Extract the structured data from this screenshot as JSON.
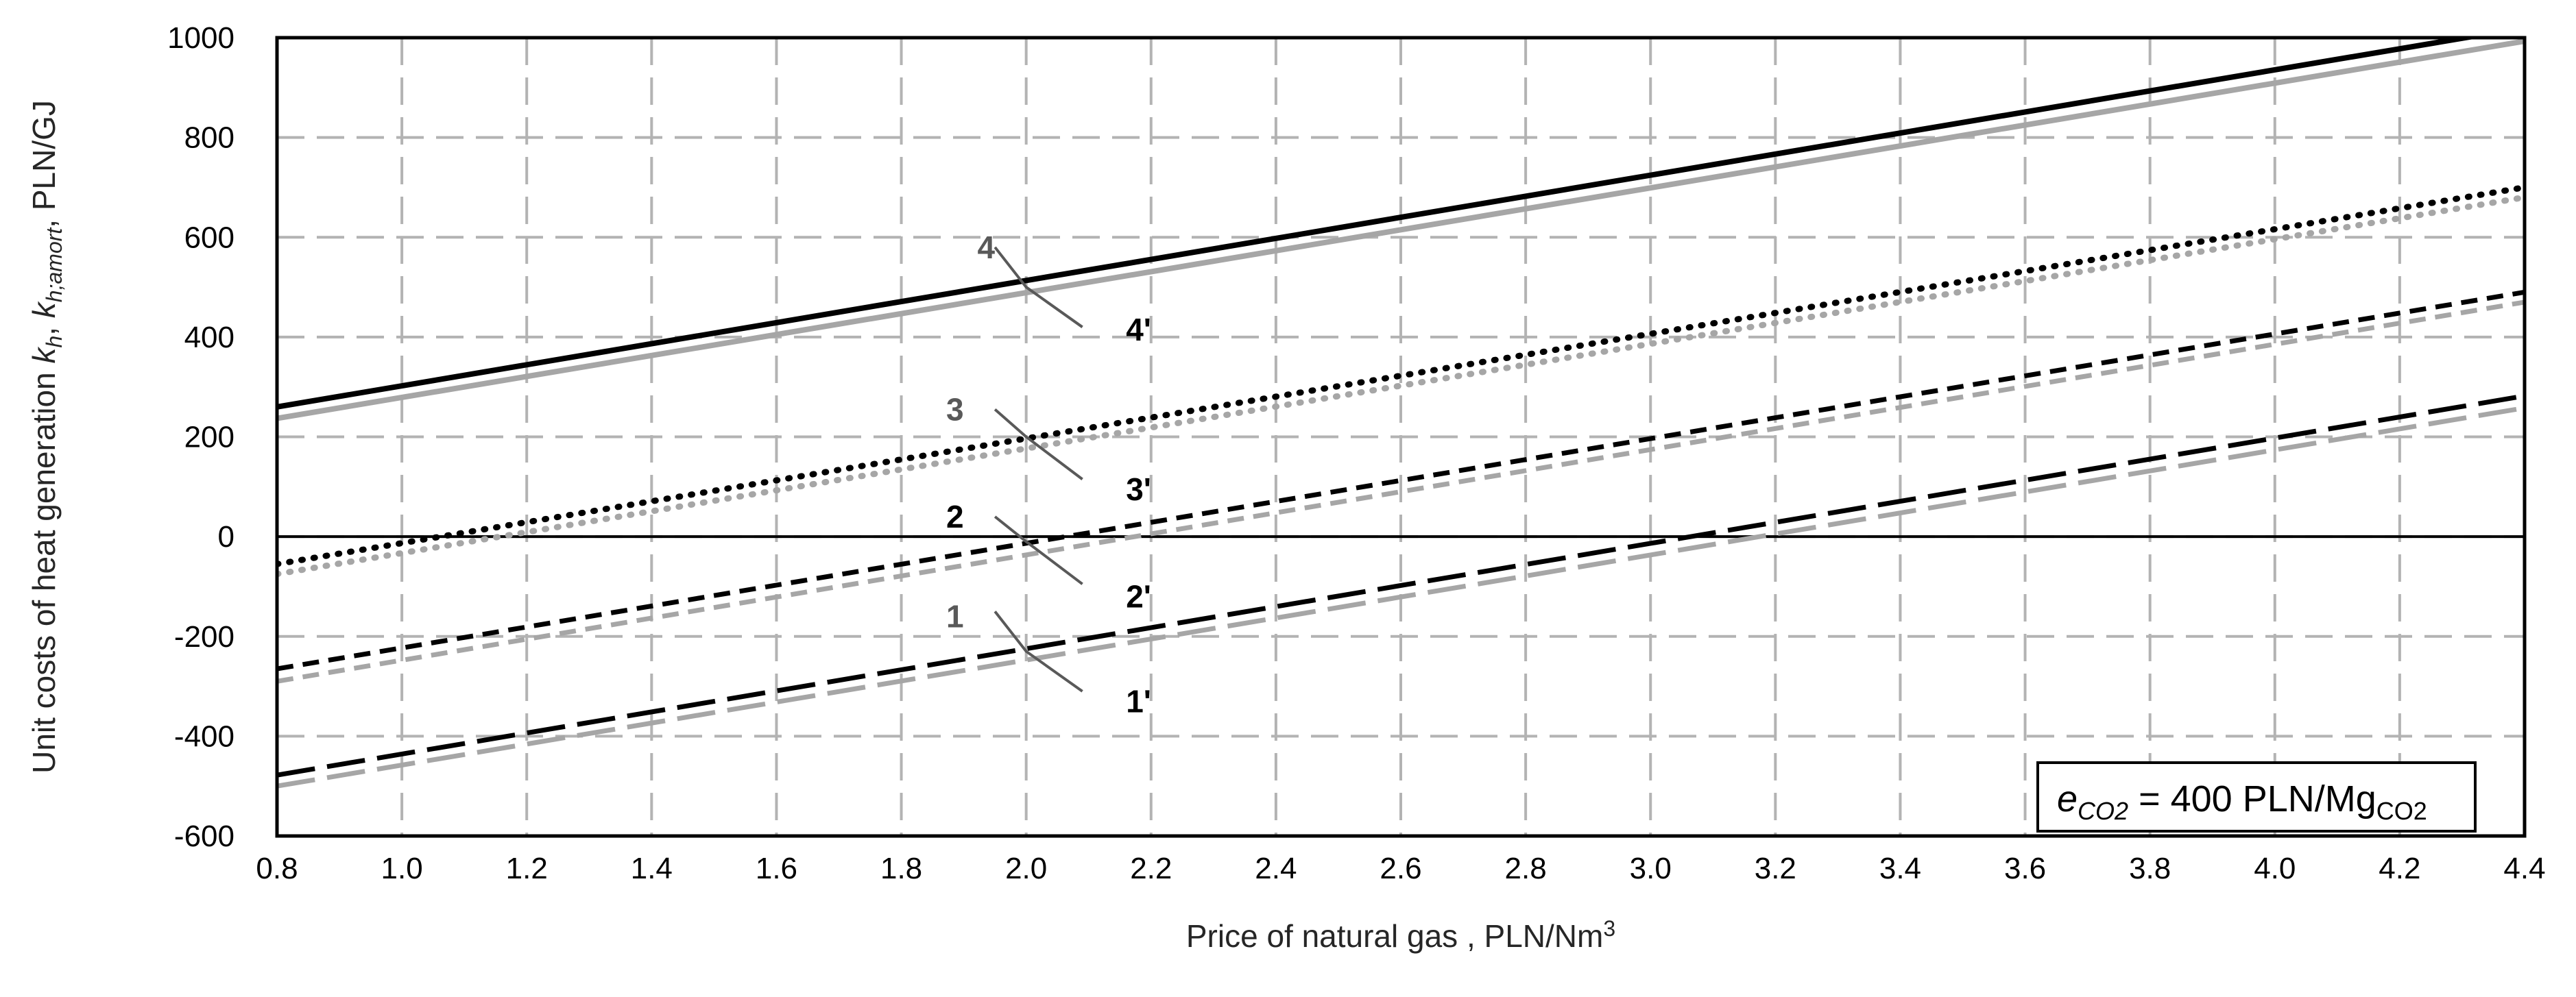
{
  "chart_data": {
    "type": "line",
    "xlabel": "Price of natural gas , PLN/Nm",
    "xlabel_sup": "3",
    "ylabel_parts": {
      "main": "Unit costs of heat generation ",
      "k": "k",
      "k_sub": "h",
      "sep": ", ",
      "k2": "k",
      "k2_sub": "h;amort",
      "unit": ", PLN/GJ"
    },
    "xlim": [
      0.8,
      4.4
    ],
    "ylim": [
      -600,
      1000
    ],
    "x_ticks": [
      0.8,
      1.0,
      1.2,
      1.4,
      1.6,
      1.8,
      2.0,
      2.2,
      2.4,
      2.6,
      2.8,
      3.0,
      3.2,
      3.4,
      3.6,
      3.8,
      4.0,
      4.2,
      4.4
    ],
    "x_tick_labels": [
      "0.8",
      "1.0",
      "1.2",
      "1.4",
      "1.6",
      "1.8",
      "2.0",
      "2.2",
      "2.4",
      "2.6",
      "2.8",
      "3.0",
      "3.2",
      "3.4",
      "3.6",
      "3.8",
      "4.0",
      "4.2",
      "4.4"
    ],
    "y_ticks": [
      -600,
      -400,
      -200,
      0,
      200,
      400,
      600,
      800,
      1000
    ],
    "y_tick_labels": [
      "-600",
      "-400",
      "-200",
      "0",
      "200",
      "400",
      "600",
      "800",
      "1000"
    ],
    "grid": true,
    "zero_line": 0,
    "series": [
      {
        "id": "4",
        "x": [
          0.8,
          4.4
        ],
        "y": [
          260,
          1020
        ],
        "color": "#000000",
        "style": "solid"
      },
      {
        "id": "4p",
        "x": [
          0.8,
          4.4
        ],
        "y": [
          237,
          993
        ],
        "color": "#a6a6a6",
        "style": "solid"
      },
      {
        "id": "3",
        "x": [
          0.8,
          4.4
        ],
        "y": [
          -55,
          700
        ],
        "color": "#000000",
        "style": "dotted"
      },
      {
        "id": "3p",
        "x": [
          0.8,
          4.4
        ],
        "y": [
          -75,
          680
        ],
        "color": "#a6a6a6",
        "style": "dotted"
      },
      {
        "id": "2",
        "x": [
          0.8,
          4.4
        ],
        "y": [
          -265,
          490
        ],
        "color": "#000000",
        "style": "dashed"
      },
      {
        "id": "2p",
        "x": [
          0.8,
          4.4
        ],
        "y": [
          -290,
          470
        ],
        "color": "#a6a6a6",
        "style": "dashed"
      },
      {
        "id": "1",
        "x": [
          0.8,
          4.4
        ],
        "y": [
          -478,
          282
        ],
        "color": "#000000",
        "style": "longdash"
      },
      {
        "id": "1p",
        "x": [
          0.8,
          4.4
        ],
        "y": [
          -500,
          258
        ],
        "color": "#a6a6a6",
        "style": "longdash"
      }
    ],
    "annotations": [
      {
        "text": "4",
        "color": "#595959",
        "at": [
          1.95,
          580
        ]
      },
      {
        "text": "4'",
        "color": "#000000",
        "at": [
          2.2,
          415
        ]
      },
      {
        "text": "3",
        "color": "#595959",
        "at": [
          1.9,
          255
        ]
      },
      {
        "text": "3'",
        "color": "#000000",
        "at": [
          2.2,
          95
        ]
      },
      {
        "text": "2",
        "color": "#000000",
        "at": [
          1.9,
          40
        ]
      },
      {
        "text": "2'",
        "color": "#000000",
        "at": [
          2.2,
          -120
        ]
      },
      {
        "text": "1",
        "color": "#595959",
        "at": [
          1.9,
          -160
        ]
      },
      {
        "text": "1'",
        "color": "#000000",
        "at": [
          2.2,
          -330
        ]
      }
    ],
    "leaders": [
      {
        "from": [
          1.95,
          580
        ],
        "to": [
          2.0,
          500
        ],
        "end": [
          2.09,
          420
        ]
      },
      {
        "from": [
          1.95,
          255
        ],
        "to": [
          2.0,
          200
        ],
        "end": [
          2.09,
          115
        ]
      },
      {
        "from": [
          1.95,
          40
        ],
        "to": [
          2.0,
          -10
        ],
        "end": [
          2.09,
          -95
        ]
      },
      {
        "from": [
          1.95,
          -150
        ],
        "to": [
          2.0,
          -230
        ],
        "end": [
          2.09,
          -310
        ]
      }
    ],
    "note": {
      "e": "e",
      "sub": "CO2",
      "text": " = 400 PLN/Mg",
      "unit_sub": "CO2"
    }
  }
}
